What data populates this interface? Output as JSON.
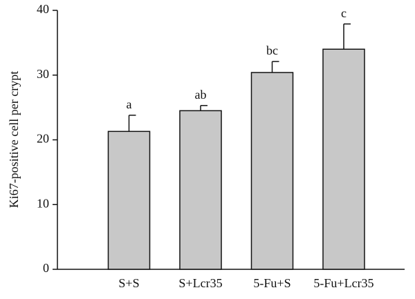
{
  "chart_data": {
    "type": "bar",
    "y_label": "Ki67-positive cell per crypt",
    "categories": [
      "S+S",
      "S+Lcr35",
      "5-Fu+S",
      "5-Fu+Lcr35"
    ],
    "values": [
      21.3,
      24.5,
      30.4,
      34.0
    ],
    "errors": [
      2.5,
      0.8,
      1.7,
      3.9
    ],
    "annotations": [
      "a",
      "ab",
      "bc",
      "c"
    ],
    "color": "#c8c8c8",
    "ylim": [
      0,
      40
    ],
    "yticks": [
      0,
      10,
      20,
      30,
      40
    ],
    "grid": false
  }
}
